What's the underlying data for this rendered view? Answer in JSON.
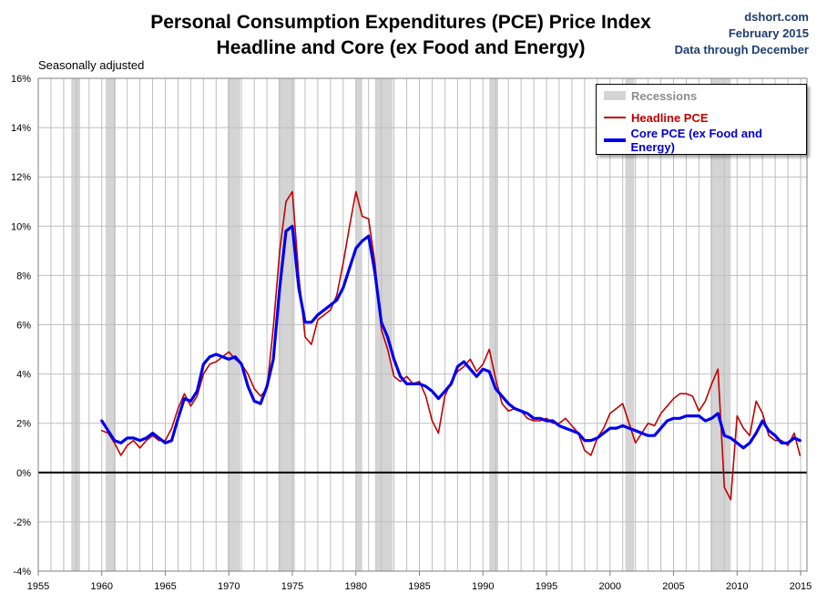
{
  "title_line1": "Personal Consumption Expenditures (PCE) Price Index",
  "title_line2": "Headline and Core (ex Food and Energy)",
  "credit": {
    "site": "dshort.com",
    "date": "February 2015",
    "through": "Data through December"
  },
  "note": "Seasonally adjusted",
  "colors": {
    "recession": "#d4d4d4",
    "headline": "#c00000",
    "core": "#0000ee",
    "grid": "#bfbfbf",
    "zero": "#000000"
  },
  "chart_data": {
    "type": "line",
    "title": "Personal Consumption Expenditures (PCE) Price Index — Headline and Core (ex Food and Energy)",
    "xlabel": "",
    "ylabel": "",
    "xlim": [
      1955,
      2015.5
    ],
    "ylim": [
      -4,
      16
    ],
    "x_ticks": [
      1955,
      1960,
      1965,
      1970,
      1975,
      1980,
      1985,
      1990,
      1995,
      2000,
      2005,
      2010,
      2015
    ],
    "y_ticks": [
      -4,
      -2,
      0,
      2,
      4,
      6,
      8,
      10,
      12,
      14,
      16
    ],
    "y_tick_labels": [
      "-4%",
      "-2%",
      "0%",
      "2%",
      "4%",
      "6%",
      "8%",
      "10%",
      "12%",
      "14%",
      "16%"
    ],
    "recessions": [
      [
        1957.6,
        1958.3
      ],
      [
        1960.3,
        1961.1
      ],
      [
        1969.9,
        1970.9
      ],
      [
        1973.9,
        1975.2
      ],
      [
        1980.0,
        1980.5
      ],
      [
        1981.5,
        1982.9
      ],
      [
        1990.5,
        1991.2
      ],
      [
        2001.2,
        2001.9
      ],
      [
        2007.9,
        2009.5
      ]
    ],
    "legend": [
      "Recessions",
      "Headline PCE",
      "Core PCE (ex Food and Energy)"
    ],
    "series": [
      {
        "name": "Headline PCE",
        "x": [
          1960.0,
          1960.5,
          1961.0,
          1961.5,
          1962.0,
          1962.5,
          1963.0,
          1963.5,
          1964.0,
          1964.5,
          1965.0,
          1965.5,
          1966.0,
          1966.5,
          1967.0,
          1967.5,
          1968.0,
          1968.5,
          1969.0,
          1969.5,
          1970.0,
          1970.5,
          1971.0,
          1971.5,
          1972.0,
          1972.5,
          1973.0,
          1973.5,
          1974.0,
          1974.5,
          1975.0,
          1975.5,
          1976.0,
          1976.5,
          1977.0,
          1977.5,
          1978.0,
          1978.5,
          1979.0,
          1979.5,
          1980.0,
          1980.5,
          1981.0,
          1981.5,
          1982.0,
          1982.5,
          1983.0,
          1983.5,
          1984.0,
          1984.5,
          1985.0,
          1985.5,
          1986.0,
          1986.5,
          1987.0,
          1987.5,
          1988.0,
          1988.5,
          1989.0,
          1989.5,
          1990.0,
          1990.5,
          1991.0,
          1991.5,
          1992.0,
          1992.5,
          1993.0,
          1993.5,
          1994.0,
          1994.5,
          1995.0,
          1995.5,
          1996.0,
          1996.5,
          1997.0,
          1997.5,
          1998.0,
          1998.5,
          1999.0,
          1999.5,
          2000.0,
          2000.5,
          2001.0,
          2001.5,
          2002.0,
          2002.5,
          2003.0,
          2003.5,
          2004.0,
          2004.5,
          2005.0,
          2005.5,
          2006.0,
          2006.5,
          2007.0,
          2007.5,
          2008.0,
          2008.5,
          2009.0,
          2009.5,
          2010.0,
          2010.5,
          2011.0,
          2011.5,
          2012.0,
          2012.5,
          2013.0,
          2013.5,
          2014.0,
          2014.5,
          2014.95
        ],
        "values": [
          1.7,
          1.6,
          1.2,
          0.7,
          1.1,
          1.3,
          1.0,
          1.3,
          1.5,
          1.3,
          1.3,
          1.8,
          2.6,
          3.2,
          2.7,
          3.1,
          4.0,
          4.4,
          4.5,
          4.7,
          4.9,
          4.6,
          4.4,
          4.0,
          3.4,
          3.1,
          3.4,
          5.9,
          9.0,
          11.0,
          11.4,
          8.0,
          5.5,
          5.2,
          6.2,
          6.4,
          6.6,
          7.2,
          8.5,
          10.0,
          11.4,
          10.4,
          10.3,
          8.5,
          5.8,
          5.0,
          3.9,
          3.7,
          3.9,
          3.6,
          3.7,
          3.1,
          2.1,
          1.6,
          3.1,
          3.7,
          4.1,
          4.3,
          4.6,
          4.1,
          4.4,
          5.0,
          3.8,
          2.8,
          2.5,
          2.6,
          2.5,
          2.2,
          2.1,
          2.1,
          2.2,
          2.0,
          2.0,
          2.2,
          1.9,
          1.6,
          0.9,
          0.7,
          1.4,
          1.8,
          2.4,
          2.6,
          2.8,
          2.0,
          1.2,
          1.6,
          2.0,
          1.9,
          2.4,
          2.7,
          3.0,
          3.2,
          3.2,
          3.1,
          2.5,
          2.9,
          3.6,
          4.2,
          -0.6,
          -1.1,
          2.3,
          1.8,
          1.5,
          2.9,
          2.4,
          1.5,
          1.3,
          1.3,
          1.1,
          1.6,
          0.7
        ]
      },
      {
        "name": "Core PCE (ex Food and Energy)",
        "x": [
          1960.0,
          1960.5,
          1961.0,
          1961.5,
          1962.0,
          1962.5,
          1963.0,
          1963.5,
          1964.0,
          1964.5,
          1965.0,
          1965.5,
          1966.0,
          1966.5,
          1967.0,
          1967.5,
          1968.0,
          1968.5,
          1969.0,
          1969.5,
          1970.0,
          1970.5,
          1971.0,
          1971.5,
          1972.0,
          1972.5,
          1973.0,
          1973.5,
          1974.0,
          1974.5,
          1975.0,
          1975.5,
          1976.0,
          1976.5,
          1977.0,
          1977.5,
          1978.0,
          1978.5,
          1979.0,
          1979.5,
          1980.0,
          1980.5,
          1981.0,
          1981.5,
          1982.0,
          1982.5,
          1983.0,
          1983.5,
          1984.0,
          1984.5,
          1985.0,
          1985.5,
          1986.0,
          1986.5,
          1987.0,
          1987.5,
          1988.0,
          1988.5,
          1989.0,
          1989.5,
          1990.0,
          1990.5,
          1991.0,
          1991.5,
          1992.0,
          1992.5,
          1993.0,
          1993.5,
          1994.0,
          1994.5,
          1995.0,
          1995.5,
          1996.0,
          1996.5,
          1997.0,
          1997.5,
          1998.0,
          1998.5,
          1999.0,
          1999.5,
          2000.0,
          2000.5,
          2001.0,
          2001.5,
          2002.0,
          2002.5,
          2003.0,
          2003.5,
          2004.0,
          2004.5,
          2005.0,
          2005.5,
          2006.0,
          2006.5,
          2007.0,
          2007.5,
          2008.0,
          2008.5,
          2009.0,
          2009.5,
          2010.0,
          2010.5,
          2011.0,
          2011.5,
          2012.0,
          2012.5,
          2013.0,
          2013.5,
          2014.0,
          2014.5,
          2014.95
        ],
        "values": [
          2.1,
          1.7,
          1.3,
          1.2,
          1.4,
          1.4,
          1.3,
          1.4,
          1.6,
          1.4,
          1.2,
          1.3,
          2.2,
          3.0,
          2.9,
          3.3,
          4.4,
          4.7,
          4.8,
          4.7,
          4.6,
          4.7,
          4.4,
          3.5,
          2.9,
          2.8,
          3.5,
          4.6,
          7.5,
          9.8,
          10.0,
          7.5,
          6.1,
          6.1,
          6.4,
          6.6,
          6.8,
          7.0,
          7.5,
          8.3,
          9.1,
          9.4,
          9.6,
          8.1,
          6.1,
          5.5,
          4.6,
          3.9,
          3.6,
          3.6,
          3.6,
          3.5,
          3.3,
          3.0,
          3.3,
          3.6,
          4.3,
          4.5,
          4.2,
          3.9,
          4.2,
          4.1,
          3.4,
          3.1,
          2.8,
          2.6,
          2.5,
          2.4,
          2.2,
          2.2,
          2.1,
          2.1,
          1.9,
          1.8,
          1.7,
          1.6,
          1.3,
          1.3,
          1.4,
          1.6,
          1.8,
          1.8,
          1.9,
          1.8,
          1.7,
          1.6,
          1.5,
          1.5,
          1.8,
          2.1,
          2.2,
          2.2,
          2.3,
          2.3,
          2.3,
          2.1,
          2.2,
          2.4,
          1.5,
          1.4,
          1.2,
          1.0,
          1.2,
          1.6,
          2.1,
          1.7,
          1.5,
          1.2,
          1.2,
          1.4,
          1.3
        ]
      }
    ]
  }
}
